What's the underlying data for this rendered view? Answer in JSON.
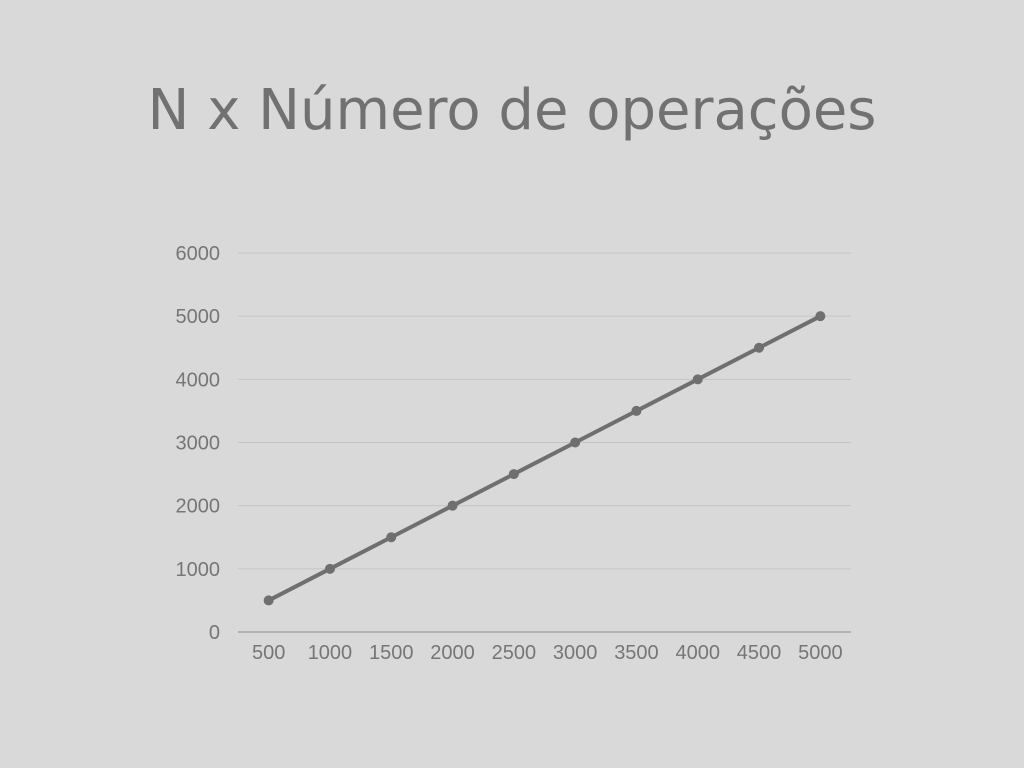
{
  "chart_data": {
    "type": "line",
    "title": "N x Número de operações",
    "xlabel": "",
    "ylabel": "",
    "categories": [
      "500",
      "1000",
      "1500",
      "2000",
      "2500",
      "3000",
      "3500",
      "4000",
      "4500",
      "5000"
    ],
    "series": [
      {
        "values": [
          500,
          1000,
          1500,
          2000,
          2500,
          3000,
          3500,
          4000,
          4500,
          5000
        ]
      }
    ],
    "ylim": [
      0,
      6000
    ],
    "yticks": [
      "0",
      "1000",
      "2000",
      "3000",
      "4000",
      "5000",
      "6000"
    ],
    "grid": true,
    "legend": "none",
    "colors": {
      "background": "#d9d9d9",
      "series": "#6f6f6f",
      "text": "#767676",
      "title": "#717171",
      "grid": "#c4c4c4"
    }
  }
}
